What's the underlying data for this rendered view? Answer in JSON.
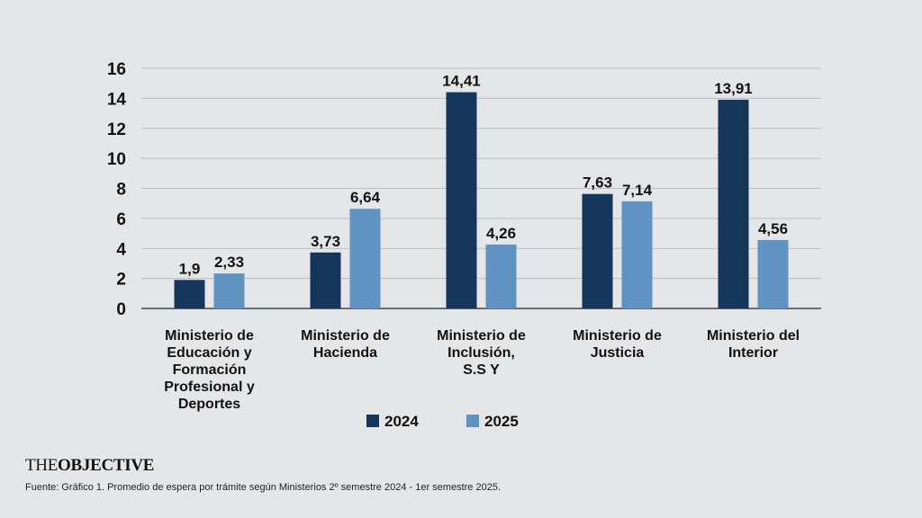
{
  "chart_data": {
    "type": "bar",
    "categories": [
      [
        "Ministerio de",
        "Educación y",
        "Formación",
        "Profesional y",
        "Deportes"
      ],
      [
        "Ministerio de",
        "Hacienda"
      ],
      [
        "Ministerio de",
        "Inclusión,",
        "S.S Y"
      ],
      [
        "Ministerio de",
        "Justicia"
      ],
      [
        "Ministerio del",
        "Interior"
      ]
    ],
    "series": [
      {
        "name": "2024",
        "color": "#14365a",
        "values": [
          1.9,
          3.73,
          14.41,
          7.63,
          13.91
        ],
        "labels": [
          "1,9",
          "3,73",
          "14,41",
          "7,63",
          "13,91"
        ]
      },
      {
        "name": "2025",
        "color": "#5e93c2",
        "values": [
          2.33,
          6.64,
          4.26,
          7.14,
          4.56
        ],
        "labels": [
          "2,33",
          "6,64",
          "4,26",
          "7,14",
          "4,56"
        ]
      }
    ],
    "ylim": [
      0,
      16
    ],
    "yticks": [
      0,
      2,
      4,
      6,
      8,
      10,
      12,
      14,
      16
    ],
    "grid": true,
    "legend_position": "bottom-center"
  },
  "footer": {
    "brand_thin": "THE",
    "brand_bold": "OBJECTIVE",
    "source": "Fuente: Gráfico 1. Promedio de espera por trámite según Ministerios 2º semestre 2024 - 1er semestre 2025."
  }
}
